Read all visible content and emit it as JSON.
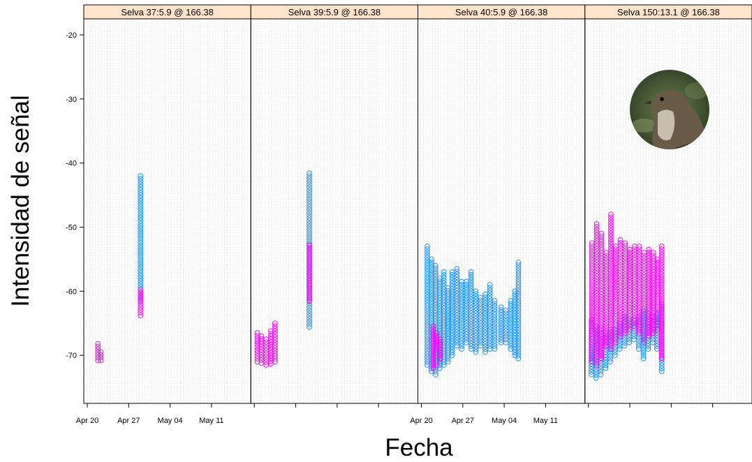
{
  "chart_data": {
    "type": "scatter",
    "xlabel": "Fecha",
    "ylabel": "Intensidad de señal",
    "ylim": [
      -77.5,
      -17.5
    ],
    "yticks": [
      -20,
      -30,
      -40,
      -50,
      -60,
      -70
    ],
    "xticks": [
      "Apr 20",
      "Apr 27",
      "May 04",
      "May 11"
    ],
    "grid": true,
    "series_colors": [
      "#1e90ff",
      "#ff00ff"
    ],
    "panels": [
      {
        "title": "Selva  37:5.9 @ 166.38",
        "points": [
          {
            "day": 1.8,
            "min": -70.8,
            "max": -68.2,
            "color": "#ff00ff"
          },
          {
            "day": 2.3,
            "min": -70.8,
            "max": -69.5,
            "color": "#ff00ff"
          },
          {
            "day": 9.0,
            "min": -61.5,
            "max": -42.0,
            "color": "#1e90ff"
          },
          {
            "day": 9.0,
            "min": -63.8,
            "max": -59.8,
            "color": "#ff00ff"
          }
        ]
      },
      {
        "title": "Selva  39:5.9 @ 166.38",
        "points": [
          {
            "day": 0.5,
            "min": -71.0,
            "max": -66.5,
            "color": "#ff00ff"
          },
          {
            "day": 1.2,
            "min": -71.2,
            "max": -67.0,
            "color": "#ff00ff"
          },
          {
            "day": 2.0,
            "min": -71.5,
            "max": -67.5,
            "color": "#ff00ff"
          },
          {
            "day": 2.8,
            "min": -71.3,
            "max": -66.2,
            "color": "#ff00ff"
          },
          {
            "day": 3.5,
            "min": -71.0,
            "max": -65.0,
            "color": "#ff00ff"
          },
          {
            "day": 9.3,
            "min": -65.6,
            "max": -41.6,
            "color": "#1e90ff"
          },
          {
            "day": 9.3,
            "min": -61.5,
            "max": -52.8,
            "color": "#ff00ff"
          }
        ]
      },
      {
        "title": "Selva  40:5.9 @ 166.38",
        "points": [
          {
            "day": 1.0,
            "min": -71.5,
            "max": -53.0,
            "color": "#1e90ff"
          },
          {
            "day": 1.7,
            "min": -72.5,
            "max": -55.0,
            "color": "#1e90ff"
          },
          {
            "day": 2.4,
            "min": -73.0,
            "max": -56.0,
            "color": "#1e90ff"
          },
          {
            "day": 3.1,
            "min": -72.0,
            "max": -58.0,
            "color": "#1e90ff"
          },
          {
            "day": 3.8,
            "min": -71.5,
            "max": -57.0,
            "color": "#1e90ff"
          },
          {
            "day": 4.5,
            "min": -71.0,
            "max": -59.5,
            "color": "#1e90ff"
          },
          {
            "day": 5.2,
            "min": -70.0,
            "max": -57.0,
            "color": "#1e90ff"
          },
          {
            "day": 6.0,
            "min": -68.5,
            "max": -56.5,
            "color": "#1e90ff"
          },
          {
            "day": 6.8,
            "min": -69.0,
            "max": -58.5,
            "color": "#1e90ff"
          },
          {
            "day": 7.6,
            "min": -68.0,
            "max": -58.5,
            "color": "#1e90ff"
          },
          {
            "day": 8.4,
            "min": -69.0,
            "max": -57.0,
            "color": "#1e90ff"
          },
          {
            "day": 9.2,
            "min": -69.5,
            "max": -60.0,
            "color": "#1e90ff"
          },
          {
            "day": 10.0,
            "min": -68.5,
            "max": -61.0,
            "color": "#1e90ff"
          },
          {
            "day": 10.8,
            "min": -69.5,
            "max": -60.5,
            "color": "#1e90ff"
          },
          {
            "day": 11.6,
            "min": -69.0,
            "max": -59.0,
            "color": "#1e90ff"
          },
          {
            "day": 12.4,
            "min": -69.0,
            "max": -61.5,
            "color": "#1e90ff"
          },
          {
            "day": 13.5,
            "min": -68.0,
            "max": -62.5,
            "color": "#1e90ff"
          },
          {
            "day": 14.3,
            "min": -68.0,
            "max": -63.0,
            "color": "#1e90ff"
          },
          {
            "day": 15.1,
            "min": -69.0,
            "max": -61.5,
            "color": "#1e90ff"
          },
          {
            "day": 15.8,
            "min": -70.0,
            "max": -60.0,
            "color": "#1e90ff"
          },
          {
            "day": 16.4,
            "min": -70.5,
            "max": -55.5,
            "color": "#1e90ff"
          },
          {
            "day": 2.0,
            "min": -72.0,
            "max": -65.5,
            "color": "#ff00ff"
          },
          {
            "day": 2.6,
            "min": -71.5,
            "max": -66.5,
            "color": "#ff00ff"
          },
          {
            "day": 3.2,
            "min": -70.5,
            "max": -67.5,
            "color": "#ff00ff"
          }
        ]
      },
      {
        "title": "Selva 150:13.1 @ 166.38",
        "points": [
          {
            "day": 0.5,
            "min": -73.0,
            "max": -64.5,
            "color": "#1e90ff"
          },
          {
            "day": 1.3,
            "min": -73.5,
            "max": -65.5,
            "color": "#1e90ff"
          },
          {
            "day": 2.1,
            "min": -73.0,
            "max": -66.0,
            "color": "#1e90ff"
          },
          {
            "day": 2.9,
            "min": -72.0,
            "max": -66.5,
            "color": "#1e90ff"
          },
          {
            "day": 3.7,
            "min": -71.0,
            "max": -66.0,
            "color": "#1e90ff"
          },
          {
            "day": 4.5,
            "min": -70.0,
            "max": -66.0,
            "color": "#1e90ff"
          },
          {
            "day": 5.3,
            "min": -69.0,
            "max": -65.0,
            "color": "#1e90ff"
          },
          {
            "day": 6.1,
            "min": -68.5,
            "max": -64.0,
            "color": "#1e90ff"
          },
          {
            "day": 6.9,
            "min": -68.0,
            "max": -64.5,
            "color": "#1e90ff"
          },
          {
            "day": 7.7,
            "min": -67.5,
            "max": -64.5,
            "color": "#1e90ff"
          },
          {
            "day": 8.5,
            "min": -69.0,
            "max": -64.0,
            "color": "#1e90ff"
          },
          {
            "day": 9.3,
            "min": -70.5,
            "max": -63.0,
            "color": "#1e90ff"
          },
          {
            "day": 10.1,
            "min": -69.0,
            "max": -63.5,
            "color": "#1e90ff"
          },
          {
            "day": 10.9,
            "min": -68.0,
            "max": -64.0,
            "color": "#1e90ff"
          },
          {
            "day": 11.6,
            "min": -69.0,
            "max": -63.5,
            "color": "#1e90ff"
          },
          {
            "day": 12.4,
            "min": -72.5,
            "max": -62.0,
            "color": "#1e90ff"
          },
          {
            "day": 0.6,
            "min": -71.0,
            "max": -52.5,
            "color": "#ff00ff"
          },
          {
            "day": 1.4,
            "min": -71.5,
            "max": -49.5,
            "color": "#ff00ff"
          },
          {
            "day": 2.2,
            "min": -70.5,
            "max": -51.0,
            "color": "#ff00ff"
          },
          {
            "day": 3.0,
            "min": -68.5,
            "max": -54.0,
            "color": "#ff00ff"
          },
          {
            "day": 3.8,
            "min": -69.0,
            "max": -48.0,
            "color": "#ff00ff"
          },
          {
            "day": 4.6,
            "min": -68.0,
            "max": -53.0,
            "color": "#ff00ff"
          },
          {
            "day": 5.4,
            "min": -67.0,
            "max": -52.0,
            "color": "#ff00ff"
          },
          {
            "day": 6.2,
            "min": -66.5,
            "max": -52.5,
            "color": "#ff00ff"
          },
          {
            "day": 7.0,
            "min": -66.0,
            "max": -53.5,
            "color": "#ff00ff"
          },
          {
            "day": 7.8,
            "min": -65.5,
            "max": -53.0,
            "color": "#ff00ff"
          },
          {
            "day": 8.6,
            "min": -66.5,
            "max": -53.0,
            "color": "#ff00ff"
          },
          {
            "day": 9.4,
            "min": -68.0,
            "max": -54.0,
            "color": "#ff00ff"
          },
          {
            "day": 10.2,
            "min": -67.0,
            "max": -53.5,
            "color": "#ff00ff"
          },
          {
            "day": 11.0,
            "min": -66.5,
            "max": -54.0,
            "color": "#ff00ff"
          },
          {
            "day": 11.7,
            "min": -66.0,
            "max": -55.0,
            "color": "#ff00ff"
          },
          {
            "day": 12.4,
            "min": -70.5,
            "max": -53.0,
            "color": "#ff00ff"
          }
        ]
      }
    ]
  }
}
